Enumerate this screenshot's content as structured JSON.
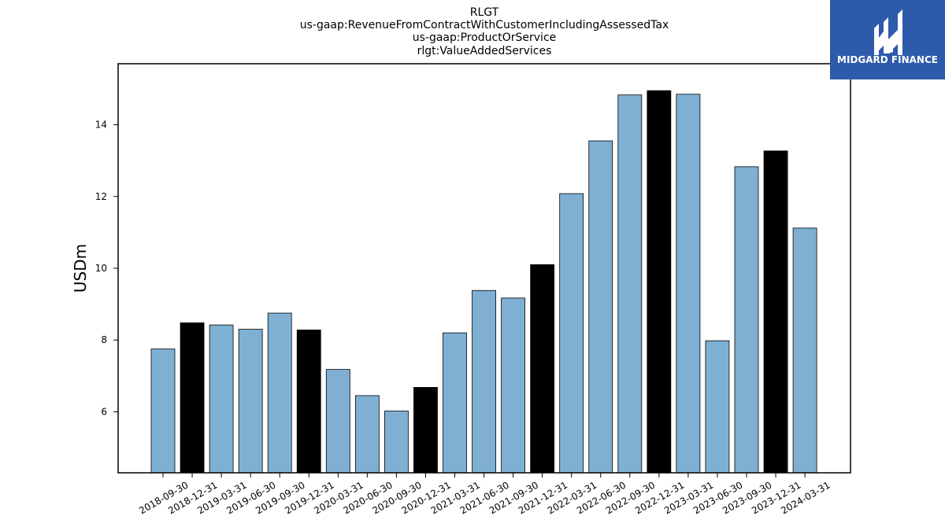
{
  "chart_data": {
    "type": "bar",
    "title_lines": [
      "RLGT",
      "us-gaap:RevenueFromContractWithCustomerIncludingAssessedTax",
      "us-gaap:ProductOrService",
      "rlgt:ValueAddedServices"
    ],
    "xlabel": "",
    "ylabel": "USDm",
    "ylim": [
      4.3,
      15.7
    ],
    "yticks": [
      6,
      8,
      10,
      12,
      14
    ],
    "categories": [
      "2018-09-30",
      "2018-12-31",
      "2019-03-31",
      "2019-06-30",
      "2019-09-30",
      "2019-12-31",
      "2020-03-31",
      "2020-06-30",
      "2020-09-30",
      "2020-12-31",
      "2021-03-31",
      "2021-06-30",
      "2021-09-30",
      "2021-12-31",
      "2022-03-31",
      "2022-06-30",
      "2022-09-30",
      "2022-12-31",
      "2023-03-31",
      "2023-06-30",
      "2023-09-30",
      "2023-12-31",
      "2024-03-31"
    ],
    "values": [
      7.75,
      8.48,
      8.42,
      8.3,
      8.75,
      8.28,
      7.18,
      6.45,
      6.02,
      6.68,
      8.2,
      9.38,
      9.17,
      10.1,
      12.08,
      13.55,
      14.83,
      14.95,
      14.85,
      7.98,
      12.83,
      13.27,
      11.12
    ],
    "highlight": [
      false,
      true,
      false,
      false,
      false,
      true,
      false,
      false,
      false,
      true,
      false,
      false,
      false,
      true,
      false,
      false,
      false,
      true,
      false,
      false,
      false,
      true,
      false
    ],
    "colors": {
      "bar": "#7fb0d4",
      "highlight": "#000000",
      "edge": "#000000",
      "axis": "#000000"
    },
    "grid": false,
    "legend": "none"
  },
  "logo": {
    "text": "MIDGARD FINANCE",
    "background": "#2d5aab",
    "icon": "midgard-mark-icon"
  }
}
